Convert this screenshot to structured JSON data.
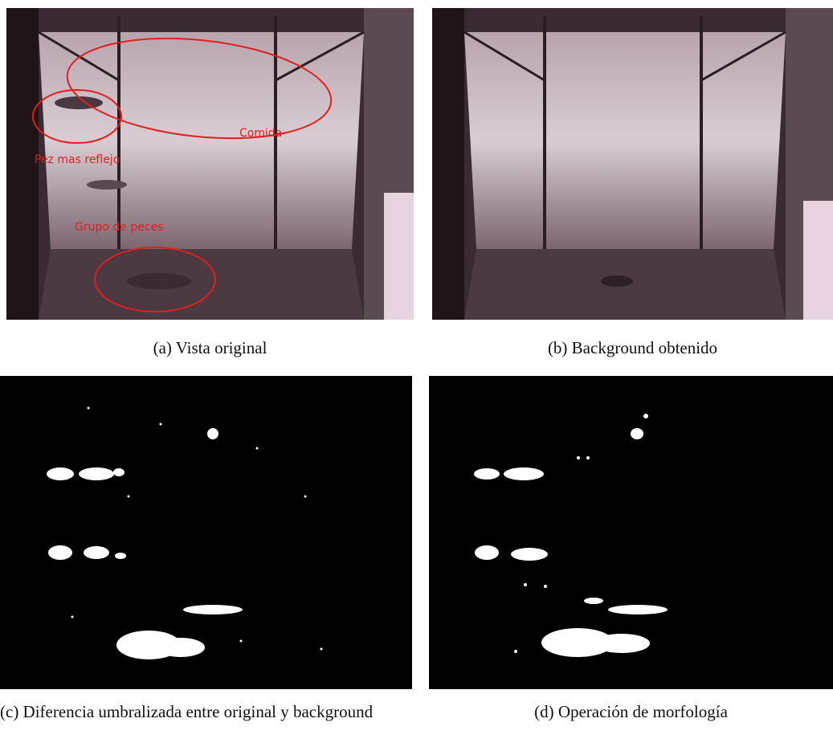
{
  "figures": [
    {
      "caption": "(a) Vista original",
      "annotations": [
        "Comida",
        "Pez mas reflejo",
        "Grupo de peces"
      ]
    },
    {
      "caption": "(b) Background obtenido"
    },
    {
      "caption": "(c) Diferencia umbralizada entre original y background"
    },
    {
      "caption": "(d) Operación de morfología"
    }
  ]
}
